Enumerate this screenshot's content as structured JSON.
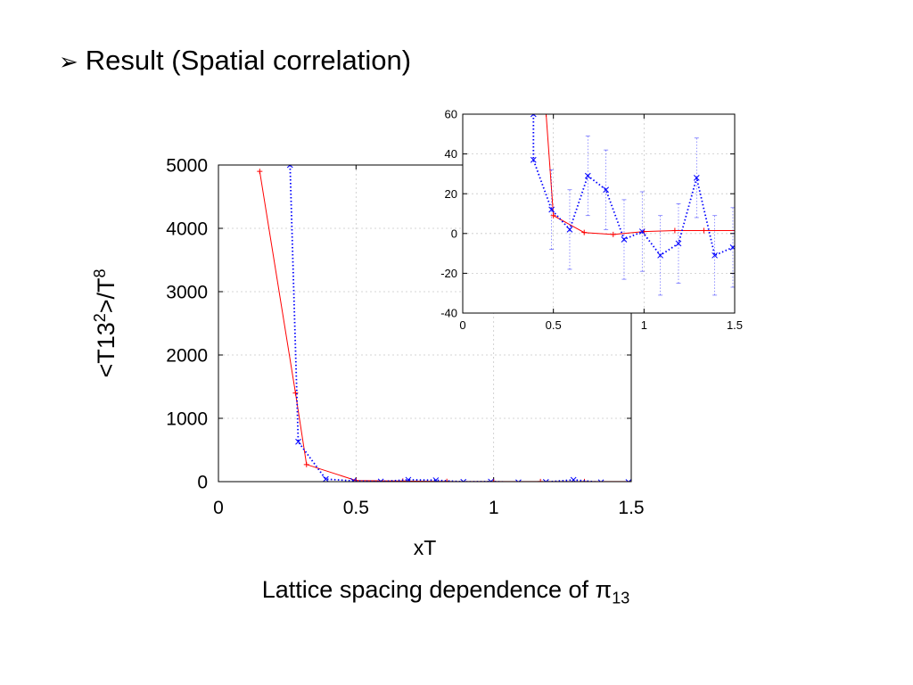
{
  "slide": {
    "bullet": "➢",
    "title": "Result (Spatial correlation)",
    "caption_prefix": "Lattice spacing dependence of ",
    "caption_symbol": "π",
    "caption_subscript": "13"
  },
  "chart_data": [
    {
      "id": "main",
      "type": "line",
      "xlabel": "xT",
      "ylabel_base": "<T13",
      "ylabel_sup1": "2",
      "ylabel_mid": ">/T",
      "ylabel_sup2": "8",
      "xlim": [
        0,
        1.5
      ],
      "ylim": [
        0,
        5000
      ],
      "xticks": [
        0,
        0.5,
        1,
        1.5
      ],
      "xtick_labels": [
        "0",
        "0.5",
        "1",
        "1.5"
      ],
      "yticks": [
        0,
        1000,
        2000,
        3000,
        4000,
        5000
      ],
      "ytick_labels": [
        "0",
        "1000",
        "2000",
        "3000",
        "4000",
        "5000"
      ],
      "grid": true,
      "series": [
        {
          "color": "#ff0000",
          "style": "solid",
          "marker": "plus",
          "x": [
            0.15,
            0.28,
            0.32,
            0.5,
            0.67,
            0.83,
            1.0,
            1.17,
            1.33,
            1.5
          ],
          "y": [
            4900,
            1400,
            270,
            18,
            8,
            3,
            1,
            1,
            1,
            1
          ]
        },
        {
          "color": "#0000ff",
          "style": "dotted",
          "marker": "cross",
          "x": [
            0.26,
            0.29,
            0.39,
            0.49,
            0.59,
            0.69,
            0.79,
            0.89,
            0.99,
            1.09,
            1.19,
            1.29,
            1.39,
            1.49
          ],
          "y": [
            5000,
            630,
            40,
            12,
            2,
            29,
            22,
            -3,
            1,
            -11,
            -5,
            28,
            -11,
            -7
          ]
        }
      ]
    },
    {
      "id": "inset",
      "type": "line",
      "xlim": [
        0,
        1.5
      ],
      "ylim": [
        -40,
        60
      ],
      "xticks": [
        0,
        0.5,
        1,
        1.5
      ],
      "xtick_labels": [
        "0",
        "0.5",
        "1",
        "1.5"
      ],
      "yticks": [
        -40,
        -20,
        0,
        20,
        40,
        60
      ],
      "ytick_labels": [
        "-40",
        "-20",
        "0",
        "20",
        "40",
        "60"
      ],
      "grid": true,
      "series": [
        {
          "color": "#ff0000",
          "style": "solid",
          "marker": "plus",
          "x": [
            0.46,
            0.5,
            0.67,
            0.83,
            1.0,
            1.17,
            1.33,
            1.5
          ],
          "y": [
            60,
            9,
            0.5,
            -0.5,
            1,
            1.5,
            1.5,
            1.5
          ]
        },
        {
          "color": "#0000ff",
          "style": "dotted",
          "marker": "cross",
          "x": [
            0.39,
            0.39,
            0.49,
            0.59,
            0.69,
            0.79,
            0.89,
            0.99,
            1.09,
            1.19,
            1.29,
            1.39,
            1.49
          ],
          "y": [
            60,
            37,
            12,
            2,
            29,
            22,
            -3,
            1,
            -11,
            -5,
            28,
            -11,
            -7
          ],
          "err": [
            0,
            0,
            20,
            20,
            20,
            20,
            20,
            20,
            20,
            20,
            20,
            20,
            20
          ]
        }
      ]
    }
  ]
}
